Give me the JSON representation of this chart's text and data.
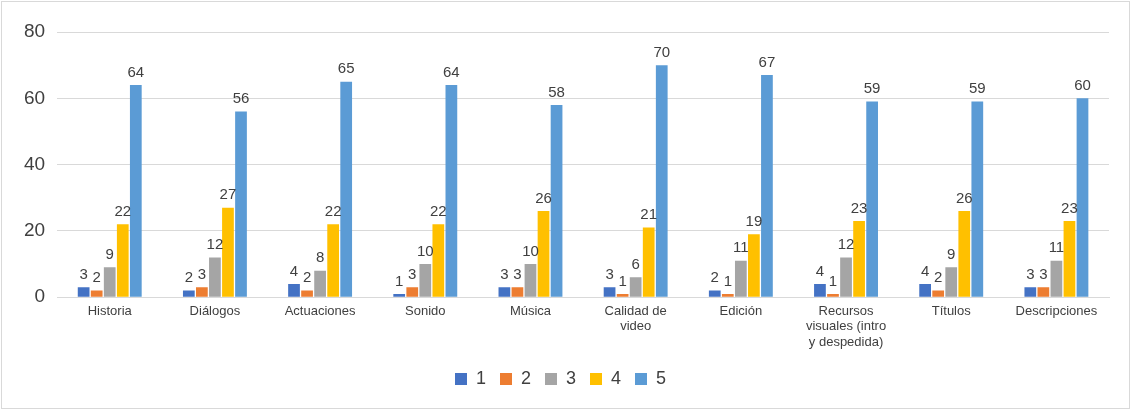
{
  "chart_data": {
    "type": "bar",
    "categories": [
      "Historia",
      "Diálogos",
      "Actuaciones",
      "Sonido",
      "Música",
      "Calidad de video",
      "Edición",
      "Recursos visuales (intro y despedida)",
      "Títulos",
      "Descripciones"
    ],
    "series": [
      {
        "name": "1",
        "color": "#4472c4",
        "values": [
          3,
          2,
          4,
          1,
          3,
          3,
          2,
          4,
          4,
          3
        ]
      },
      {
        "name": "2",
        "color": "#ed7d31",
        "values": [
          2,
          3,
          2,
          3,
          3,
          1,
          1,
          1,
          2,
          3
        ]
      },
      {
        "name": "3",
        "color": "#a5a5a5",
        "values": [
          9,
          12,
          8,
          10,
          10,
          6,
          11,
          12,
          9,
          11
        ]
      },
      {
        "name": "4",
        "color": "#ffc000",
        "values": [
          22,
          27,
          22,
          22,
          26,
          21,
          19,
          23,
          26,
          23
        ]
      },
      {
        "name": "5",
        "color": "#5b9bd5",
        "values": [
          64,
          56,
          65,
          64,
          58,
          70,
          67,
          59,
          59,
          60
        ]
      }
    ],
    "ylim": [
      0,
      80
    ],
    "yticks": [
      0,
      20,
      40,
      60,
      80
    ],
    "grid": "y",
    "legend": "bottom",
    "data_labels": true
  }
}
